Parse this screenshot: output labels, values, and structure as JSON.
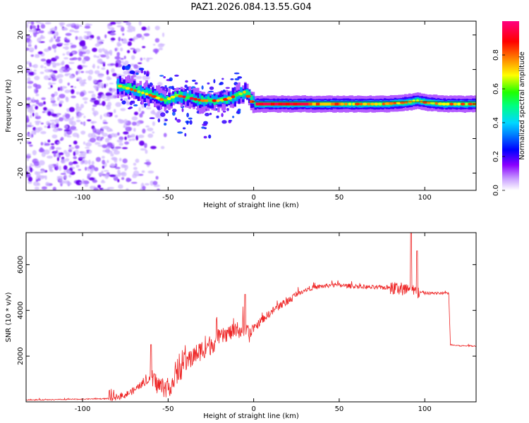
{
  "title": "PAZ1.2026.084.13.55.G04",
  "chart_data": [
    {
      "type": "heatmap",
      "name": "spectrogram",
      "xlabel": "Height of straight line (km)",
      "ylabel": "Frequency (Hz)",
      "xlim": [
        -133,
        130
      ],
      "ylim": [
        -25,
        24
      ],
      "xticks": [
        -100,
        -50,
        0,
        50,
        100
      ],
      "yticks": [
        20,
        10,
        0,
        -10,
        -20
      ],
      "colorbar": {
        "label": "Normalized spectral amplitude",
        "range": [
          0,
          1
        ],
        "ticks": [
          0.0,
          0.2,
          0.4,
          0.6,
          0.8
        ],
        "colors": [
          "#ffffff",
          "#8a00ff",
          "#0000ff",
          "#00d8ff",
          "#00ff40",
          "#ffff00",
          "#ff8000",
          "#ff0000",
          "#ff0080"
        ]
      },
      "dominant_frequency_track": {
        "x": [
          -80,
          -70,
          -60,
          -52,
          -45,
          -40,
          -35,
          -30,
          -25,
          -20,
          -15,
          -10,
          -5,
          0,
          25,
          50,
          75,
          90,
          95,
          100,
          110,
          130
        ],
        "y": [
          5.5,
          4,
          2.5,
          1,
          2.5,
          2,
          1.5,
          1,
          1,
          1,
          1.5,
          2.5,
          3.5,
          0,
          0,
          0,
          0,
          0.5,
          1,
          0.5,
          0,
          0
        ]
      },
      "noise_region_x": [
        -133,
        -75
      ]
    },
    {
      "type": "line",
      "name": "snr",
      "xlabel": "Height of straight line (km)",
      "ylabel": "SNR (10 * v/v)",
      "xlim": [
        -133,
        130
      ],
      "ylim": [
        0,
        7400
      ],
      "xticks": [
        -100,
        -50,
        0,
        50,
        100
      ],
      "yticks": [
        2000,
        4000,
        6000
      ],
      "line_color": "#ee2222",
      "series": [
        {
          "name": "SNR",
          "x": [
            -133,
            -120,
            -100,
            -85,
            -75,
            -70,
            -65,
            -60,
            -55,
            -50,
            -45,
            -40,
            -35,
            -30,
            -25,
            -20,
            -15,
            -10,
            -5,
            -2,
            0,
            5,
            10,
            15,
            20,
            25,
            30,
            35,
            40,
            45,
            50,
            60,
            70,
            80,
            85,
            90,
            92,
            95,
            100,
            105,
            110,
            114,
            115,
            120,
            125,
            130
          ],
          "y": [
            90,
            90,
            120,
            140,
            300,
            500,
            800,
            1000,
            700,
            600,
            1100,
            1700,
            2000,
            2300,
            2500,
            2800,
            3000,
            3100,
            3150,
            2900,
            3200,
            3600,
            3900,
            4200,
            4400,
            4700,
            4900,
            5000,
            5050,
            5100,
            5100,
            5050,
            5000,
            5000,
            4950,
            4900,
            4850,
            4800,
            4750,
            4750,
            4750,
            4750,
            2500,
            2450,
            2450,
            2450
          ]
        }
      ]
    }
  ]
}
